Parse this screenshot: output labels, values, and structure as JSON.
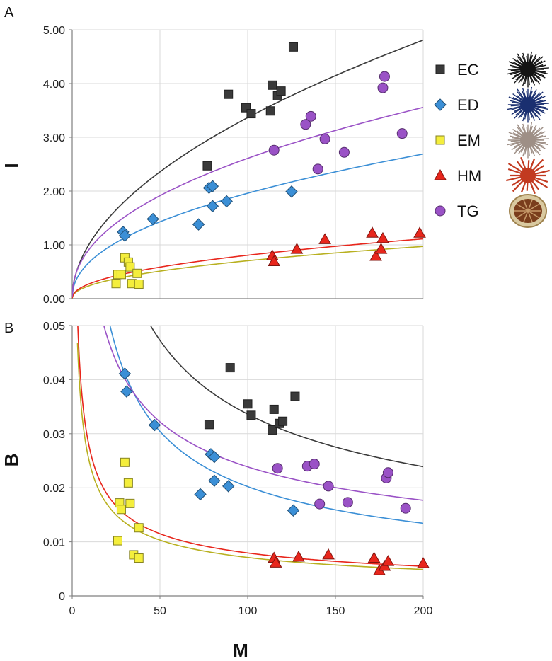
{
  "chart_data": [
    {
      "panel_label": "A",
      "type": "scatter",
      "ylabel": "I",
      "xlabel": "",
      "xlim": [
        0,
        200
      ],
      "ylim": [
        0,
        5
      ],
      "yticks": [
        "0.00",
        "1.00",
        "2.00",
        "3.00",
        "4.00",
        "5.00"
      ],
      "xgrid": [
        0,
        50,
        100,
        150,
        200
      ],
      "series": [
        {
          "name": "EC",
          "color": "#3a3a3a",
          "marker": "square",
          "points": [
            [
              77,
              2.47
            ],
            [
              89,
              3.8
            ],
            [
              99,
              3.55
            ],
            [
              102,
              3.44
            ],
            [
              113,
              3.49
            ],
            [
              114,
              3.97
            ],
            [
              117,
              3.77
            ],
            [
              119,
              3.86
            ],
            [
              126,
              4.68
            ]
          ],
          "fit": {
            "a": 0.3156,
            "b": 0.514
          }
        },
        {
          "name": "ED",
          "color": "#3b8fd6",
          "marker": "diamond",
          "points": [
            [
              29,
              1.24
            ],
            [
              30,
              1.17
            ],
            [
              46,
              1.48
            ],
            [
              72,
              1.38
            ],
            [
              78,
              2.06
            ],
            [
              80,
              1.72
            ],
            [
              80,
              2.09
            ],
            [
              88,
              1.81
            ],
            [
              125,
              1.99
            ]
          ],
          "fit": {
            "a": 0.24,
            "b": 0.456
          }
        },
        {
          "name": "EM",
          "color": "#f4ee3c",
          "marker": "square",
          "points": [
            [
              25,
              0.28
            ],
            [
              26,
              0.45
            ],
            [
              28,
              0.45
            ],
            [
              30,
              0.76
            ],
            [
              32,
              0.68
            ],
            [
              33,
              0.59
            ],
            [
              34,
              0.28
            ],
            [
              37,
              0.47
            ],
            [
              38,
              0.27
            ]
          ],
          "fit": {
            "a": 0.0837,
            "b": 0.4626
          }
        },
        {
          "name": "HM",
          "color": "#e8261c",
          "marker": "triangle",
          "points": [
            [
              114,
              0.8
            ],
            [
              115,
              0.69
            ],
            [
              128,
              0.92
            ],
            [
              144,
              1.1
            ],
            [
              171,
              1.22
            ],
            [
              173,
              0.79
            ],
            [
              176,
              0.92
            ],
            [
              177,
              1.12
            ],
            [
              198,
              1.22
            ]
          ],
          "fit": {
            "a": 0.0964,
            "b": 0.4614
          }
        },
        {
          "name": "TG",
          "color": "#9a52c6",
          "marker": "circle",
          "points": [
            [
              115,
              2.76
            ],
            [
              133,
              3.24
            ],
            [
              136,
              3.39
            ],
            [
              140,
              2.41
            ],
            [
              144,
              2.97
            ],
            [
              155,
              2.72
            ],
            [
              177,
              3.92
            ],
            [
              178,
              4.13
            ],
            [
              188,
              3.07
            ]
          ],
          "fit": {
            "a": 0.333,
            "b": 0.447
          }
        }
      ]
    },
    {
      "panel_label": "B",
      "type": "scatter",
      "ylabel": "B",
      "xlabel": "M",
      "xlim": [
        0,
        200
      ],
      "ylim": [
        0,
        0.05
      ],
      "yticks": [
        "0",
        "0.01",
        "0.02",
        "0.03",
        "0.04",
        "0.05"
      ],
      "xticks": [
        "0",
        "50",
        "100",
        "150",
        "200"
      ],
      "series": [
        {
          "name": "EC",
          "color": "#3a3a3a",
          "marker": "square",
          "points": [
            [
              78,
              0.0317
            ],
            [
              90,
              0.0422
            ],
            [
              100,
              0.0355
            ],
            [
              102,
              0.0334
            ],
            [
              114,
              0.0307
            ],
            [
              115,
              0.0345
            ],
            [
              118,
              0.0319
            ],
            [
              120,
              0.0323
            ],
            [
              127,
              0.0369
            ]
          ],
          "fit": {
            "a": 0.324,
            "b": -0.492
          }
        },
        {
          "name": "ED",
          "color": "#3b8fd6",
          "marker": "diamond",
          "points": [
            [
              30,
              0.0411
            ],
            [
              31,
              0.0378
            ],
            [
              47,
              0.0316
            ],
            [
              73,
              0.0188
            ],
            [
              79,
              0.0262
            ],
            [
              81,
              0.0257
            ],
            [
              81,
              0.0213
            ],
            [
              89,
              0.0203
            ],
            [
              126,
              0.0158
            ]
          ],
          "fit": {
            "a": 0.306,
            "b": -0.59
          }
        },
        {
          "name": "EM",
          "color": "#f4ee3c",
          "marker": "square",
          "points": [
            [
              26,
              0.0102
            ],
            [
              27,
              0.0172
            ],
            [
              28,
              0.016
            ],
            [
              30,
              0.0247
            ],
            [
              32,
              0.0209
            ],
            [
              33,
              0.0171
            ],
            [
              35,
              0.0076
            ],
            [
              38,
              0.0126
            ],
            [
              38,
              0.007
            ]
          ],
          "fit": {
            "a": 0.0845,
            "b": -0.5375
          }
        },
        {
          "name": "HM",
          "color": "#e8261c",
          "marker": "triangle",
          "points": [
            [
              115,
              0.007
            ],
            [
              116,
              0.0061
            ],
            [
              129,
              0.0072
            ],
            [
              146,
              0.0076
            ],
            [
              172,
              0.007
            ],
            [
              175,
              0.0047
            ],
            [
              178,
              0.0055
            ],
            [
              180,
              0.0064
            ],
            [
              200,
              0.006
            ]
          ],
          "fit": {
            "a": 0.0928,
            "b": -0.5339
          }
        },
        {
          "name": "TG",
          "color": "#9a52c6",
          "marker": "circle",
          "points": [
            [
              117,
              0.0236
            ],
            [
              134,
              0.024
            ],
            [
              138,
              0.0244
            ],
            [
              141,
              0.017
            ],
            [
              146,
              0.0203
            ],
            [
              157,
              0.0173
            ],
            [
              179,
              0.0218
            ],
            [
              180,
              0.0228
            ],
            [
              190,
              0.0162
            ]
          ],
          "fit": {
            "a": 0.1745,
            "b": -0.432
          }
        }
      ]
    }
  ],
  "legend": [
    {
      "label": "EC",
      "color": "#3a3a3a",
      "marker": "square",
      "icon": "black-sea-urchin-icon"
    },
    {
      "label": "ED",
      "color": "#3b8fd6",
      "marker": "diamond",
      "icon": "blue-sea-urchin-icon"
    },
    {
      "label": "EM",
      "color": "#f4ee3c",
      "marker": "square",
      "icon": "white-sea-urchin-icon"
    },
    {
      "label": "HM",
      "color": "#e8261c",
      "marker": "triangle",
      "icon": "red-sea-urchin-icon"
    },
    {
      "label": "TG",
      "color": "#9a52c6",
      "marker": "circle",
      "icon": "collector-urchin-icon"
    }
  ]
}
